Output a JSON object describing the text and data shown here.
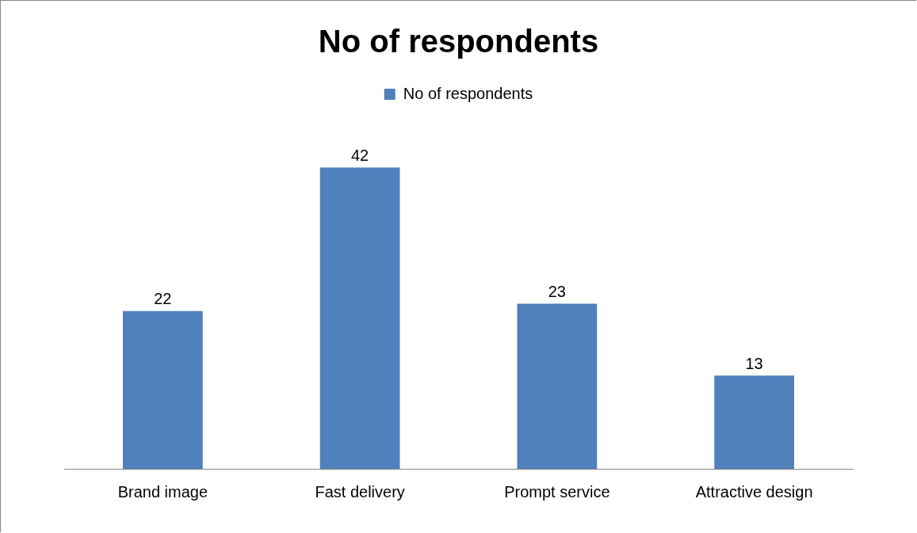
{
  "chart_data": {
    "type": "bar",
    "title": "No of respondents",
    "categories": [
      "Brand image",
      "Fast delivery",
      "Prompt service",
      "Attractive design"
    ],
    "series": [
      {
        "name": "No of respondents",
        "color": "#4f81bd",
        "values": [
          22,
          42,
          23,
          13
        ]
      }
    ],
    "data_labels": true,
    "legend": "top",
    "grid": false
  }
}
